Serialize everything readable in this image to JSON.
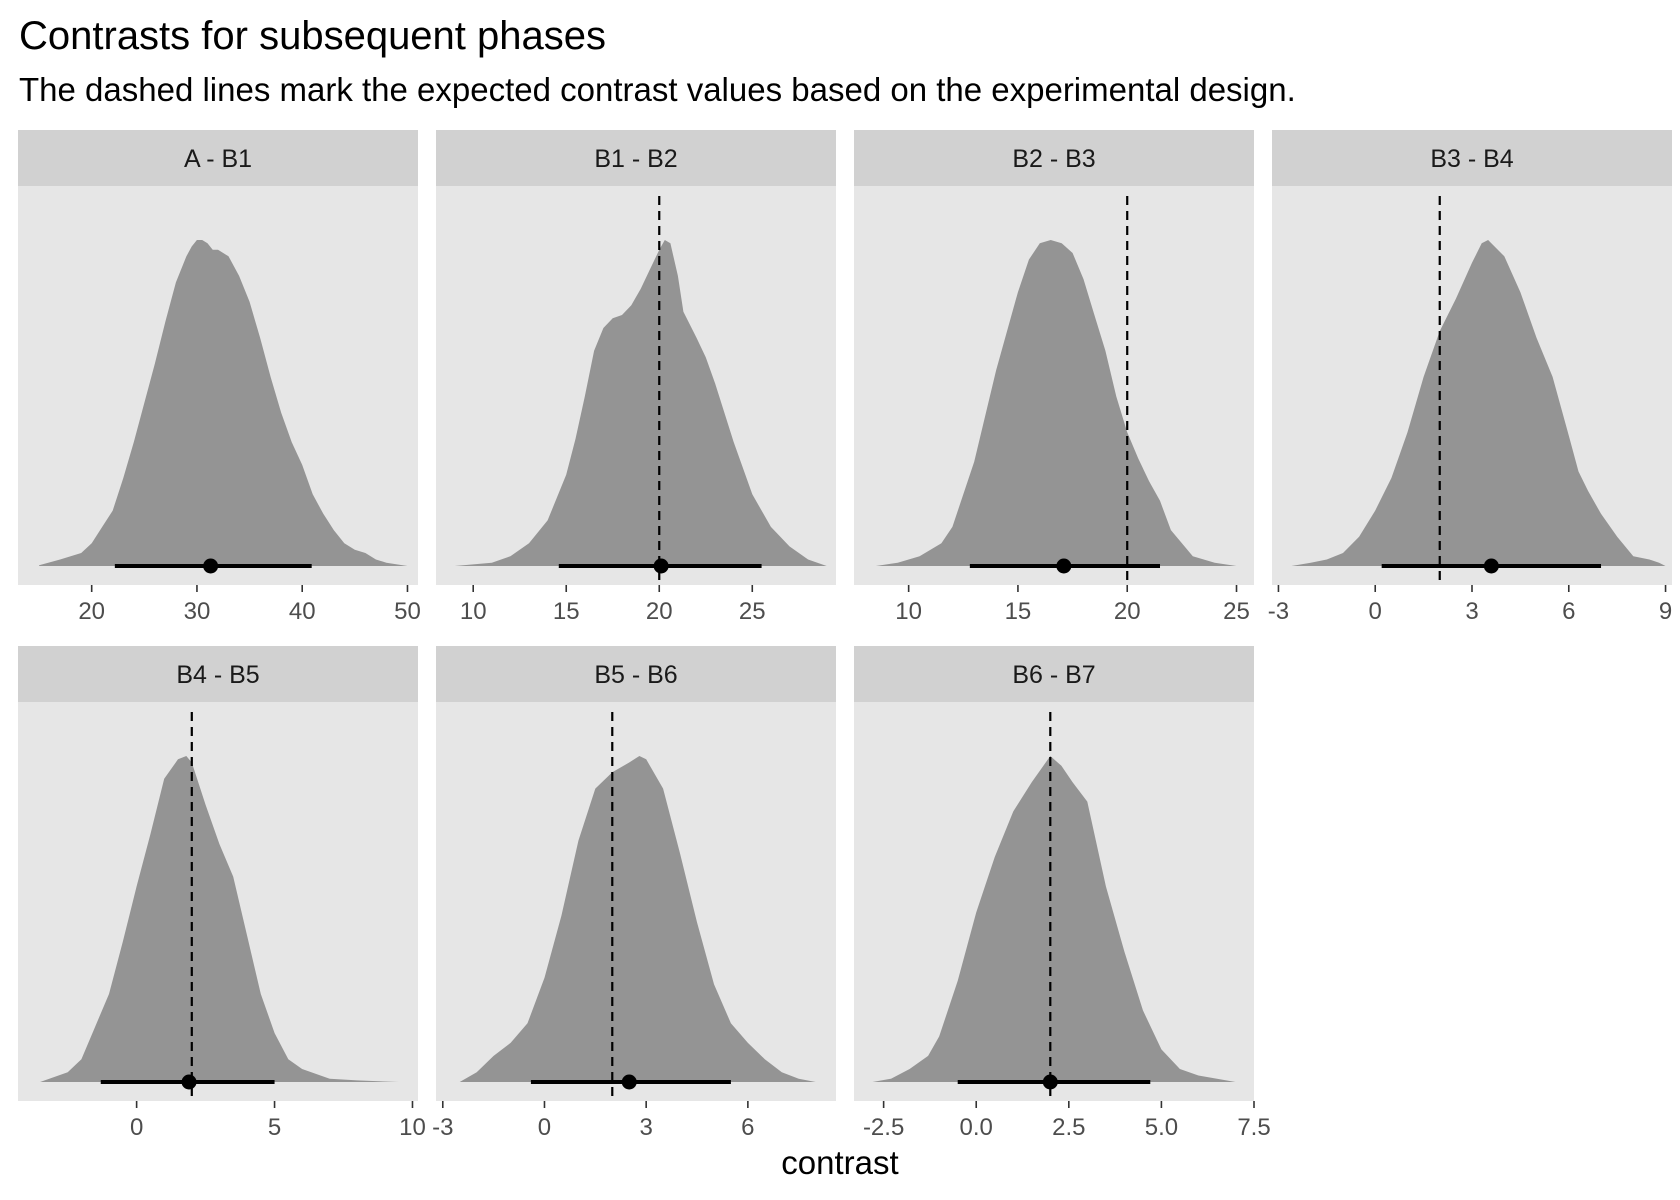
{
  "title": "Contrasts for subsequent phases",
  "subtitle": "The dashed lines mark the expected contrast values based on the experimental design.",
  "xlabel": "contrast",
  "colors": {
    "panel_background": "#e6e6e6",
    "strip_background": "#d1d1d1",
    "density_fill": "#949494",
    "interval": "#000000",
    "reference_line": "#000000",
    "tick_label": "#4d4d4d"
  },
  "chart_data": [
    {
      "type": "area",
      "facet": "A - B1",
      "xlim": [
        13,
        51
      ],
      "ticks": [
        20,
        30,
        40,
        50
      ],
      "tick_labels": [
        "20",
        "30",
        "40",
        "50"
      ],
      "reference": null,
      "density": {
        "x": [
          15,
          17,
          19,
          20,
          21,
          22,
          23,
          24,
          25,
          26,
          27,
          28,
          29,
          29.5,
          30,
          30.5,
          31,
          31.5,
          32,
          33,
          34,
          35,
          36,
          37,
          38,
          39,
          40,
          41,
          42,
          43,
          44,
          45,
          46,
          47,
          48,
          50
        ],
        "y": [
          0.002,
          0.02,
          0.04,
          0.07,
          0.12,
          0.17,
          0.27,
          0.38,
          0.5,
          0.62,
          0.75,
          0.87,
          0.95,
          0.98,
          1.0,
          1.0,
          0.99,
          0.97,
          0.97,
          0.95,
          0.89,
          0.81,
          0.7,
          0.58,
          0.47,
          0.38,
          0.31,
          0.22,
          0.16,
          0.11,
          0.07,
          0.05,
          0.04,
          0.02,
          0.01,
          0.0
        ]
      },
      "interval": {
        "low": 22.2,
        "high": 40.9
      },
      "point": 31.3
    },
    {
      "type": "area",
      "facet": "B1 - B2",
      "xlim": [
        8,
        29.5
      ],
      "ticks": [
        10,
        15,
        20,
        25
      ],
      "tick_labels": [
        "10",
        "15",
        "20",
        "25"
      ],
      "reference": 20,
      "density": {
        "x": [
          9,
          11,
          12,
          13,
          14,
          15,
          15.5,
          16,
          16.5,
          17,
          17.5,
          18,
          18.5,
          19,
          19.5,
          20,
          20.3,
          20.6,
          21,
          21.3,
          22,
          22.5,
          23,
          24,
          25,
          26,
          27,
          28,
          29
        ],
        "y": [
          0.0,
          0.01,
          0.03,
          0.07,
          0.14,
          0.28,
          0.39,
          0.52,
          0.66,
          0.73,
          0.76,
          0.77,
          0.8,
          0.85,
          0.91,
          0.97,
          1.0,
          0.99,
          0.89,
          0.78,
          0.7,
          0.64,
          0.56,
          0.38,
          0.22,
          0.12,
          0.06,
          0.02,
          0.0
        ]
      },
      "interval": {
        "low": 14.6,
        "high": 25.5
      },
      "point": 20.1
    },
    {
      "type": "area",
      "facet": "B2 - B3",
      "xlim": [
        7.5,
        25.8
      ],
      "ticks": [
        10,
        15,
        20,
        25
      ],
      "tick_labels": [
        "10",
        "15",
        "20",
        "25"
      ],
      "reference": 20,
      "density": {
        "x": [
          8.5,
          9.5,
          10.5,
          11.5,
          12,
          13,
          14,
          15,
          15.5,
          16,
          16.5,
          17,
          17.5,
          18,
          18.5,
          19,
          19.5,
          20,
          20.5,
          21,
          21.5,
          22,
          23,
          24,
          25
        ],
        "y": [
          0.0,
          0.01,
          0.03,
          0.07,
          0.12,
          0.32,
          0.6,
          0.84,
          0.94,
          0.99,
          1.0,
          0.99,
          0.96,
          0.88,
          0.77,
          0.66,
          0.52,
          0.41,
          0.33,
          0.26,
          0.2,
          0.11,
          0.03,
          0.01,
          0.0
        ]
      },
      "interval": {
        "low": 12.8,
        "high": 21.5
      },
      "point": 17.1
    },
    {
      "type": "area",
      "facet": "B3 - B4",
      "xlim": [
        -3.2,
        9.2
      ],
      "ticks": [
        -3,
        0,
        3,
        6,
        9
      ],
      "tick_labels": [
        "-3",
        "0",
        "3",
        "6",
        "9"
      ],
      "reference": 2,
      "density": {
        "x": [
          -2.6,
          -2,
          -1.5,
          -1,
          -0.5,
          0,
          0.5,
          1,
          1.5,
          2,
          2.5,
          3,
          3.3,
          3.5,
          3.8,
          4,
          4.5,
          5,
          5.5,
          6,
          6.3,
          6.6,
          7,
          7.5,
          8,
          8.5,
          8.8,
          9
        ],
        "y": [
          0.0,
          0.01,
          0.02,
          0.04,
          0.09,
          0.17,
          0.27,
          0.41,
          0.58,
          0.72,
          0.82,
          0.93,
          0.99,
          1.0,
          0.97,
          0.95,
          0.84,
          0.7,
          0.58,
          0.4,
          0.29,
          0.23,
          0.16,
          0.09,
          0.03,
          0.02,
          0.01,
          0.0
        ]
      },
      "interval": {
        "low": 0.2,
        "high": 7.0
      },
      "point": 3.6
    },
    {
      "type": "area",
      "facet": "B4 - B5",
      "xlim": [
        -4.3,
        10.2
      ],
      "ticks": [
        0,
        5,
        10
      ],
      "tick_labels": [
        "0",
        "5",
        "10"
      ],
      "reference": 2,
      "density": {
        "x": [
          -3.5,
          -2.5,
          -2,
          -1.5,
          -1,
          -0.5,
          0,
          0.5,
          1,
          1.5,
          1.8,
          2,
          2.5,
          3,
          3.5,
          4,
          4.5,
          5,
          5.5,
          6,
          7,
          8,
          9.5
        ],
        "y": [
          0.0,
          0.03,
          0.07,
          0.17,
          0.27,
          0.43,
          0.6,
          0.76,
          0.93,
          0.99,
          1.0,
          0.98,
          0.85,
          0.73,
          0.63,
          0.45,
          0.27,
          0.15,
          0.07,
          0.04,
          0.01,
          0.005,
          0.0
        ]
      },
      "interval": {
        "low": -1.3,
        "high": 5.0
      },
      "point": 1.9
    },
    {
      "type": "area",
      "facet": "B5 - B6",
      "xlim": [
        -3.2,
        8.6
      ],
      "ticks": [
        -3,
        0,
        3,
        6
      ],
      "tick_labels": [
        "-3",
        "0",
        "3",
        "6"
      ],
      "reference": 2,
      "density": {
        "x": [
          -2.5,
          -2,
          -1.5,
          -1,
          -0.5,
          0,
          0.5,
          1,
          1.5,
          2,
          2.5,
          2.8,
          3,
          3.5,
          4,
          4.5,
          5,
          5.5,
          6,
          6.5,
          7,
          7.5,
          8
        ],
        "y": [
          0.0,
          0.03,
          0.08,
          0.12,
          0.18,
          0.32,
          0.51,
          0.74,
          0.9,
          0.95,
          0.98,
          1.0,
          0.99,
          0.9,
          0.7,
          0.49,
          0.3,
          0.18,
          0.12,
          0.07,
          0.03,
          0.01,
          0.0
        ]
      },
      "interval": {
        "low": -0.4,
        "high": 5.5
      },
      "point": 2.5
    },
    {
      "type": "area",
      "facet": "B6 - B7",
      "xlim": [
        -3.3,
        7.5
      ],
      "ticks": [
        -2.5,
        0,
        2.5,
        5,
        7.5
      ],
      "tick_labels": [
        "-2.5",
        "0.0",
        "2.5",
        "5.0",
        "7.5"
      ],
      "reference": 2,
      "density": {
        "x": [
          -2.8,
          -2.3,
          -1.8,
          -1.3,
          -1,
          -0.5,
          0,
          0.5,
          1,
          1.5,
          2,
          2.3,
          2.6,
          3,
          3.5,
          4,
          4.5,
          5,
          5.5,
          6,
          6.5,
          7
        ],
        "y": [
          0.0,
          0.01,
          0.04,
          0.08,
          0.14,
          0.31,
          0.52,
          0.69,
          0.83,
          0.92,
          1.0,
          0.97,
          0.92,
          0.86,
          0.6,
          0.4,
          0.22,
          0.1,
          0.04,
          0.02,
          0.01,
          0.0
        ]
      },
      "interval": {
        "low": -0.5,
        "high": 4.7
      },
      "point": 2.0
    }
  ]
}
